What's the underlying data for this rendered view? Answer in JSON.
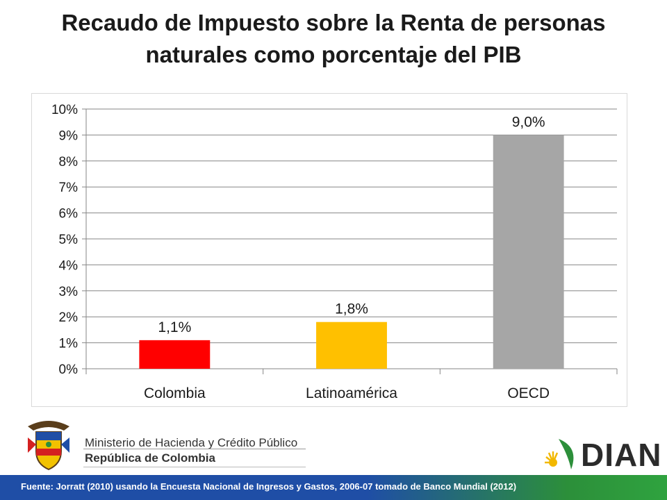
{
  "title_lines": [
    "Recaudo de Impuesto sobre la Renta de personas",
    "naturales como porcentaje del PIB"
  ],
  "chart_data": {
    "type": "bar",
    "categories": [
      "Colombia",
      "Latinoamérica",
      "OECD"
    ],
    "values": [
      1.1,
      1.8,
      9.0
    ],
    "data_labels": [
      "1,1%",
      "1,8%",
      "9,0%"
    ],
    "bar_colors": [
      "#ff0000",
      "#ffc000",
      "#a6a6a6"
    ],
    "ylim": [
      0,
      10
    ],
    "y_ticks": [
      0,
      1,
      2,
      3,
      4,
      5,
      6,
      7,
      8,
      9,
      10
    ],
    "y_tick_labels": [
      "0%",
      "1%",
      "2%",
      "3%",
      "4%",
      "5%",
      "6%",
      "7%",
      "8%",
      "9%",
      "10%"
    ],
    "grid": true,
    "legend": "none"
  },
  "logos": {
    "ministry_line1": "Ministerio de Hacienda y Crédito Público",
    "ministry_line2": "República de Colombia",
    "coat_of_arms": "colombia-coat-of-arms-icon",
    "dian_text": "DIAN",
    "dian_mark": "dian-sun-leaf-icon"
  },
  "footer": {
    "source": "Fuente: Jorratt (2010) usando la Encuesta Nacional de Ingresos y Gastos, 2006-07 tomado de Banco Mundial (2012)"
  }
}
